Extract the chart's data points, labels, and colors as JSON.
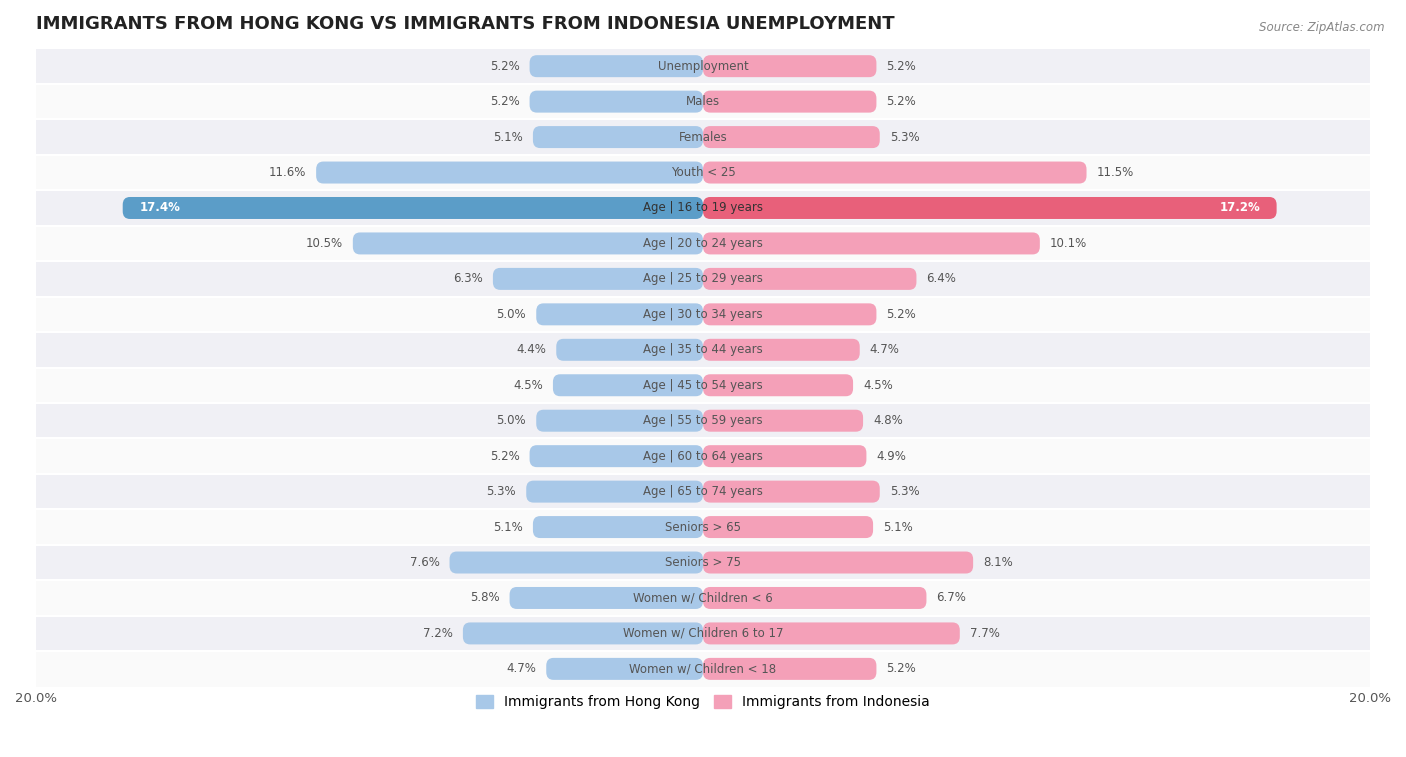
{
  "title": "IMMIGRANTS FROM HONG KONG VS IMMIGRANTS FROM INDONESIA UNEMPLOYMENT",
  "source": "Source: ZipAtlas.com",
  "categories": [
    "Unemployment",
    "Males",
    "Females",
    "Youth < 25",
    "Age | 16 to 19 years",
    "Age | 20 to 24 years",
    "Age | 25 to 29 years",
    "Age | 30 to 34 years",
    "Age | 35 to 44 years",
    "Age | 45 to 54 years",
    "Age | 55 to 59 years",
    "Age | 60 to 64 years",
    "Age | 65 to 74 years",
    "Seniors > 65",
    "Seniors > 75",
    "Women w/ Children < 6",
    "Women w/ Children 6 to 17",
    "Women w/ Children < 18"
  ],
  "hong_kong": [
    5.2,
    5.2,
    5.1,
    11.6,
    17.4,
    10.5,
    6.3,
    5.0,
    4.4,
    4.5,
    5.0,
    5.2,
    5.3,
    5.1,
    7.6,
    5.8,
    7.2,
    4.7
  ],
  "indonesia": [
    5.2,
    5.2,
    5.3,
    11.5,
    17.2,
    10.1,
    6.4,
    5.2,
    4.7,
    4.5,
    4.8,
    4.9,
    5.3,
    5.1,
    8.1,
    6.7,
    7.7,
    5.2
  ],
  "hk_color": "#a8c8e8",
  "id_color": "#f4a0b8",
  "hk_highlight_color": "#5b9dc8",
  "id_highlight_color": "#e8607a",
  "row_color_odd": "#f0f0f5",
  "row_color_even": "#fafafa",
  "row_sep_color": "#ffffff",
  "xlim": 20.0,
  "bar_height": 0.62,
  "label_fontsize": 8.5,
  "title_fontsize": 13,
  "legend_fontsize": 10,
  "value_fontsize": 8.5
}
